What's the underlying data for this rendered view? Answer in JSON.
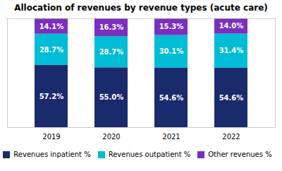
{
  "chart_data": {
    "type": "bar",
    "title": "Allocation of revenues by revenue types (acute care)",
    "categories": [
      "2019",
      "2020",
      "2021",
      "2022"
    ],
    "series": [
      {
        "name": "Revenues inpatient %",
        "color": "#1a2b6d",
        "values": [
          57.2,
          55.0,
          54.6,
          54.6
        ],
        "value_labels": [
          "57.2%",
          "55.0%",
          "54.6%",
          "54.6%"
        ]
      },
      {
        "name": "Revenues outpatient %",
        "color": "#00bcd4",
        "values": [
          28.7,
          28.7,
          30.1,
          31.4
        ],
        "value_labels": [
          "28.7%",
          "28.7%",
          "30.1%",
          "31.4%"
        ]
      },
      {
        "name": "Other revenues %",
        "color": "#7b2fbe",
        "values": [
          14.1,
          16.3,
          15.3,
          14.0
        ],
        "value_labels": [
          "14.1%",
          "16.3%",
          "15.3%",
          "14.0%"
        ]
      }
    ],
    "stacked": true,
    "data_labels": true,
    "ylim": [
      0,
      100
    ],
    "grid": false,
    "tick_labels": "x",
    "legend": "bottom"
  }
}
